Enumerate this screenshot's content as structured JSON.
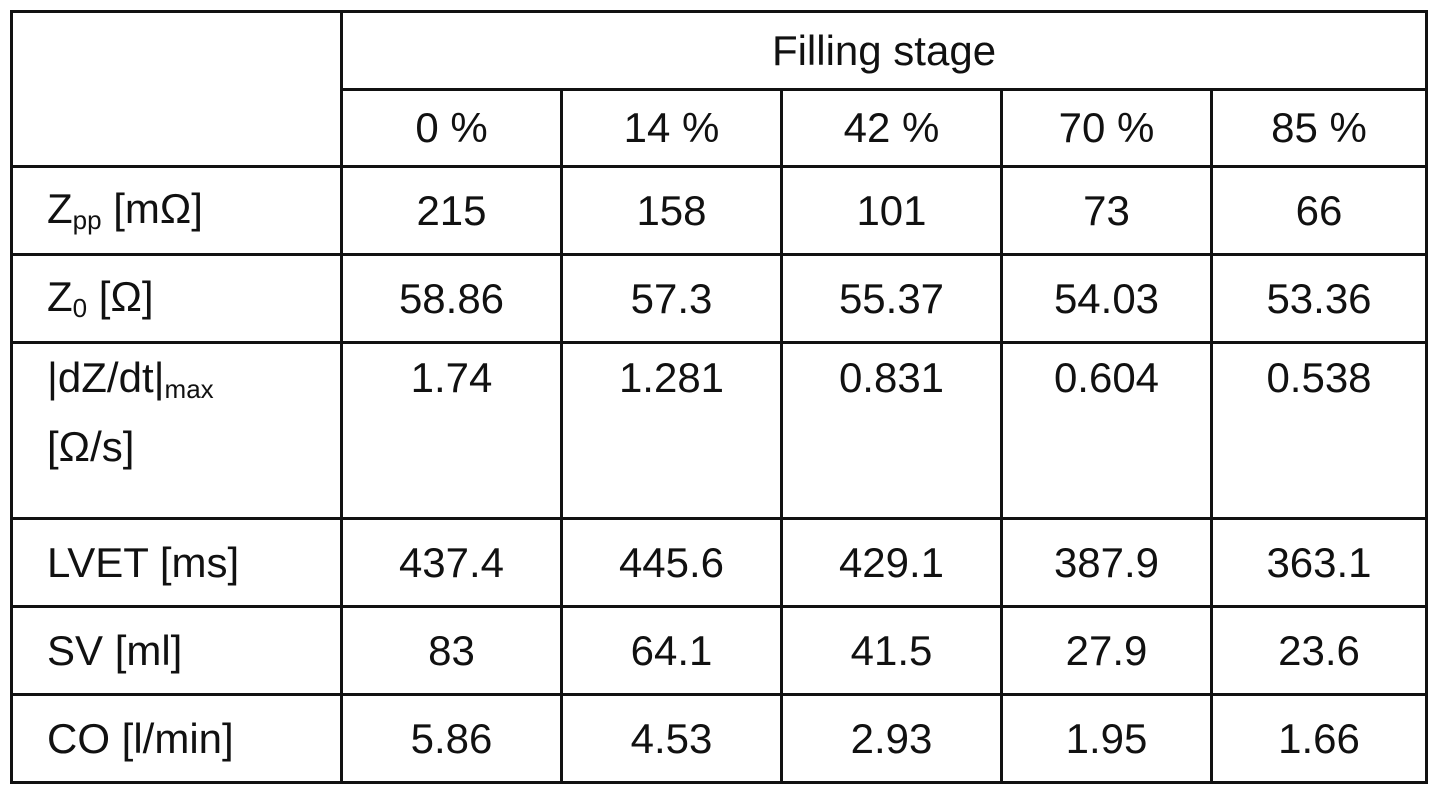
{
  "table": {
    "group_header": "Filling stage",
    "columns": [
      "0 %",
      "14 %",
      "42 %",
      "70 %",
      "85 %"
    ],
    "rows": [
      {
        "label": {
          "main": "Z",
          "sub": "pp",
          "unit": " [mΩ]"
        },
        "values": [
          "215",
          "158",
          "101",
          "73",
          "66"
        ]
      },
      {
        "label": {
          "main": "Z",
          "sub": "0",
          "unit": " [Ω]"
        },
        "values": [
          "58.86",
          "57.3",
          "55.37",
          "54.03",
          "53.36"
        ]
      },
      {
        "label": {
          "main": "|dZ/dt|",
          "sub": "max",
          "unit": "[Ω/s]"
        },
        "values": [
          "1.74",
          "1.281",
          "0.831",
          "0.604",
          "0.538"
        ]
      },
      {
        "label": {
          "main": "LVET [ms]"
        },
        "values": [
          "437.4",
          "445.6",
          "429.1",
          "387.9",
          "363.1"
        ]
      },
      {
        "label": {
          "main": "SV [ml]"
        },
        "values": [
          "83",
          "64.1",
          "41.5",
          "27.9",
          "23.6"
        ]
      },
      {
        "label": {
          "main": "CO [l/min]"
        },
        "values": [
          "5.86",
          "4.53",
          "2.93",
          "1.95",
          "1.66"
        ]
      }
    ]
  }
}
